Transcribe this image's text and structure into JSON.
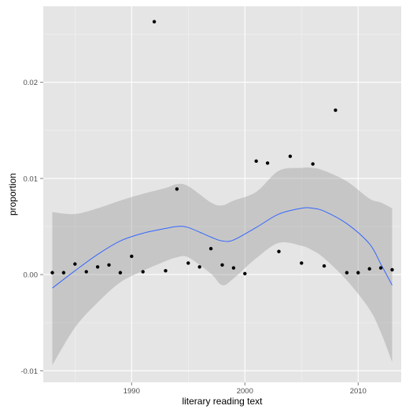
{
  "chart_data": {
    "type": "scatter",
    "title": "",
    "xlabel": "literary reading text",
    "ylabel": "proportion",
    "xlim": [
      1982.2,
      2013.8
    ],
    "ylim": [
      -0.0112,
      0.0279
    ],
    "x_ticks": [
      1990,
      2000,
      2010
    ],
    "x_tick_labels": [
      "1990",
      "2000",
      "2010"
    ],
    "y_ticks": [
      -0.01,
      0.0,
      0.01,
      0.02
    ],
    "y_tick_labels": [
      "-0.01",
      "0.00",
      "0.01",
      "0.02"
    ],
    "grid": true,
    "legend": "none",
    "points": [
      {
        "x": 1983,
        "y": 0.0002
      },
      {
        "x": 1984,
        "y": 0.0002
      },
      {
        "x": 1985,
        "y": 0.0011
      },
      {
        "x": 1986,
        "y": 0.0003
      },
      {
        "x": 1987,
        "y": 0.0008
      },
      {
        "x": 1988,
        "y": 0.001
      },
      {
        "x": 1989,
        "y": 0.0002
      },
      {
        "x": 1990,
        "y": 0.0019
      },
      {
        "x": 1991,
        "y": 0.0003
      },
      {
        "x": 1992,
        "y": 0.0263
      },
      {
        "x": 1993,
        "y": 0.0004
      },
      {
        "x": 1994,
        "y": 0.0089
      },
      {
        "x": 1995,
        "y": 0.0012
      },
      {
        "x": 1996,
        "y": 0.0008
      },
      {
        "x": 1997,
        "y": 0.0027
      },
      {
        "x": 1998,
        "y": 0.001
      },
      {
        "x": 1999,
        "y": 0.0007
      },
      {
        "x": 2000,
        "y": 0.0001
      },
      {
        "x": 2001,
        "y": 0.0118
      },
      {
        "x": 2002,
        "y": 0.0116
      },
      {
        "x": 2003,
        "y": 0.0024
      },
      {
        "x": 2004,
        "y": 0.0123
      },
      {
        "x": 2005,
        "y": 0.0012
      },
      {
        "x": 2006,
        "y": 0.0115
      },
      {
        "x": 2007,
        "y": 0.0009
      },
      {
        "x": 2008,
        "y": 0.0171
      },
      {
        "x": 2009,
        "y": 0.0002
      },
      {
        "x": 2010,
        "y": 0.0002
      },
      {
        "x": 2011,
        "y": 0.0006
      },
      {
        "x": 2012,
        "y": 0.0007
      },
      {
        "x": 2013,
        "y": 0.0005
      }
    ],
    "smooth": {
      "x": [
        1983,
        1985,
        1987,
        1989,
        1991,
        1993,
        1994,
        1995,
        1997,
        1998,
        1999,
        2001,
        2003,
        2005,
        2006,
        2007,
        2009,
        2011,
        2012,
        2013
      ],
      "y": [
        -0.0014,
        0.0004,
        0.0021,
        0.0035,
        0.0043,
        0.0048,
        0.005,
        0.0049,
        0.0039,
        0.0035,
        0.0036,
        0.0049,
        0.0063,
        0.0069,
        0.0069,
        0.0066,
        0.0053,
        0.0032,
        0.0011,
        -0.0011
      ],
      "lower": [
        -0.0094,
        -0.0055,
        -0.0029,
        -0.0008,
        0.0004,
        0.0014,
        0.0018,
        0.0018,
        0.0001,
        -0.0011,
        -0.0004,
        0.0017,
        0.0033,
        0.003,
        0.0025,
        0.0017,
        -0.0006,
        -0.0036,
        -0.006,
        -0.0091
      ],
      "upper": [
        0.0065,
        0.0063,
        0.0069,
        0.0077,
        0.0084,
        0.009,
        0.0094,
        0.0092,
        0.0075,
        0.0072,
        0.0077,
        0.0086,
        0.0108,
        0.0111,
        0.0111,
        0.0108,
        0.0097,
        0.0079,
        0.0075,
        0.0069
      ]
    },
    "colors": {
      "panel": "#e5e5e5",
      "grid_major": "#ffffff",
      "grid_minor": "#f2f2f2",
      "point": "#000000",
      "line": "#3366ff",
      "ribbon": "#999999"
    }
  }
}
